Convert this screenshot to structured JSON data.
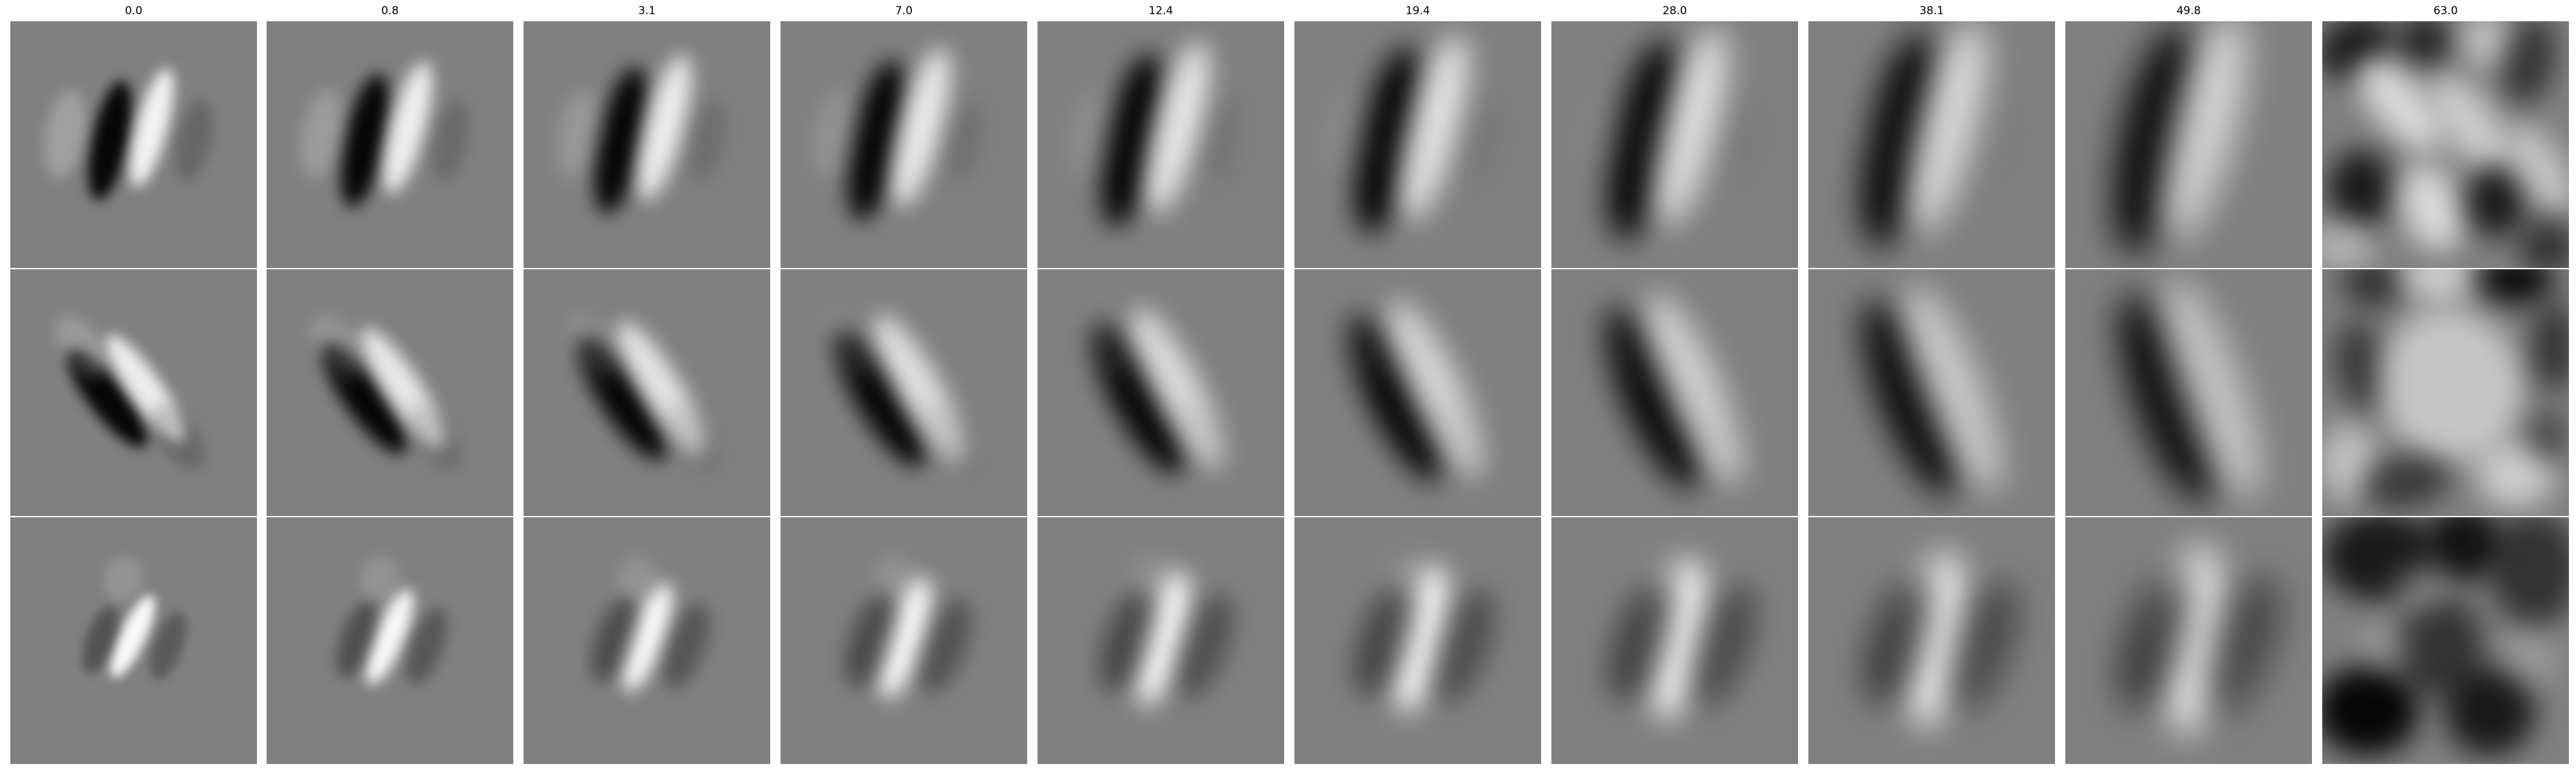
{
  "figure": {
    "columns": [
      {
        "title": "0.0"
      },
      {
        "title": "0.8"
      },
      {
        "title": "3.1"
      },
      {
        "title": "7.0"
      },
      {
        "title": "12.4"
      },
      {
        "title": "19.4"
      },
      {
        "title": "28.0"
      },
      {
        "title": "38.1"
      },
      {
        "title": "49.8"
      },
      {
        "title": "63.0"
      }
    ],
    "rows": 3,
    "colors": {
      "background": "#ffffff",
      "panel_gray": "#808080",
      "dark": "#000000",
      "light": "#ffffff"
    }
  }
}
